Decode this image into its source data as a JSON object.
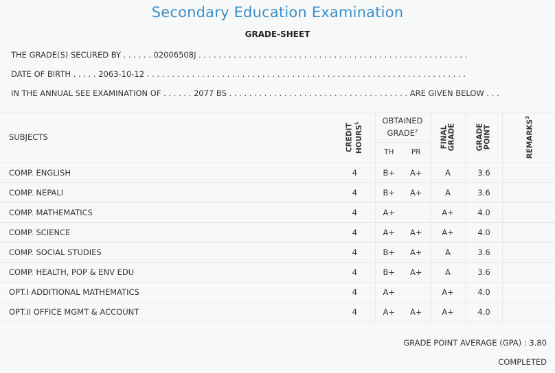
{
  "header": {
    "title": "Secondary Education Examination",
    "subtitle": "GRADE-SHEET"
  },
  "info": {
    "secured_by_line": "THE GRADE(S) SECURED BY . . . . . . 02006508J . . . . . . . . . . . . . . . . . . . . . . . . . . . . . . . . . . . . . . . . . . . . . . . . . . . . . .",
    "dob_line": "DATE OF BIRTH . . . . . 2063-10-12 . . . . . . . . . . . . . . . . . . . . . . . . . . . . . . . . . . . . . . . . . . . . . . . . . . . . . . . . . . . . . . . .",
    "exam_line": "IN THE ANNUAL SEE EXAMINATION OF . . . . . . 2077 BS . . . . . . . . . . . . . . . . . . . . . . . . . . . . . . . . . . . . ARE GIVEN BELOW . . ."
  },
  "table": {
    "headers": {
      "subjects": "SUBJECTS",
      "credit_hours_l1": "CREDIT",
      "credit_hours_l2": "HOURS",
      "credit_hours_sup": "1",
      "obtained_l1": "OBTAINED",
      "obtained_l2": "GRADE",
      "obtained_sup": "2",
      "th": "TH",
      "pr": "PR",
      "final_l1": "FINAL",
      "final_l2": "GRADE",
      "point_l1": "GRADE",
      "point_l2": "POINT",
      "remarks": "REMARKS",
      "remarks_sup": "3"
    },
    "rows": [
      {
        "subject": "COMP. ENGLISH",
        "credit": "4",
        "th": "B+",
        "pr": "A+",
        "final": "A",
        "point": "3.6",
        "remarks": ""
      },
      {
        "subject": "COMP. NEPALI",
        "credit": "4",
        "th": "B+",
        "pr": "A+",
        "final": "A",
        "point": "3.6",
        "remarks": ""
      },
      {
        "subject": "COMP. MATHEMATICS",
        "credit": "4",
        "th": "A+",
        "pr": "",
        "final": "A+",
        "point": "4.0",
        "remarks": ""
      },
      {
        "subject": "COMP. SCIENCE",
        "credit": "4",
        "th": "A+",
        "pr": "A+",
        "final": "A+",
        "point": "4.0",
        "remarks": ""
      },
      {
        "subject": "COMP. SOCIAL STUDIES",
        "credit": "4",
        "th": "B+",
        "pr": "A+",
        "final": "A",
        "point": "3.6",
        "remarks": ""
      },
      {
        "subject": "COMP. HEALTH, POP & ENV EDU",
        "credit": "4",
        "th": "B+",
        "pr": "A+",
        "final": "A",
        "point": "3.6",
        "remarks": ""
      },
      {
        "subject": "OPT.I ADDITIONAL MATHEMATICS",
        "credit": "4",
        "th": "A+",
        "pr": "",
        "final": "A+",
        "point": "4.0",
        "remarks": ""
      },
      {
        "subject": "OPT.II OFFICE MGMT & ACCOUNT",
        "credit": "4",
        "th": "A+",
        "pr": "A+",
        "final": "A+",
        "point": "4.0",
        "remarks": ""
      }
    ]
  },
  "summary": {
    "gpa_label": "GRADE POINT AVERAGE (GPA) :",
    "gpa_value": "3.80",
    "status": "COMPLETED"
  },
  "colors": {
    "title": "#3b8fc7",
    "background": "#f7f9f9",
    "rule": "#e4e8e8"
  }
}
